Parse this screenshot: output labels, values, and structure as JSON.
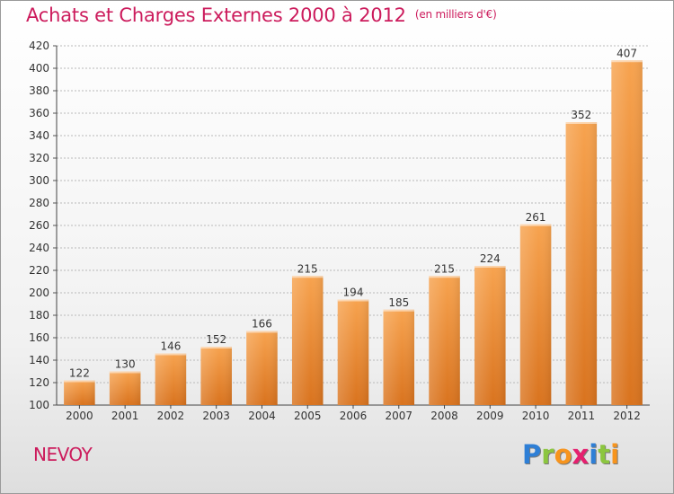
{
  "header": {
    "title": "Achats et Charges Externes 2000 à 2012",
    "subtitle": "(en milliers d'€)"
  },
  "footer": {
    "commune": "NEVOY",
    "brand": "Proxiti",
    "brand_letters": [
      {
        "ch": "P",
        "color": "#2e7fd6"
      },
      {
        "ch": "r",
        "color": "#8cc63f"
      },
      {
        "ch": "o",
        "color": "#f7941d"
      },
      {
        "ch": "x",
        "color": "#e5206f"
      },
      {
        "ch": "i",
        "color": "#2e7fd6"
      },
      {
        "ch": "t",
        "color": "#8cc63f"
      },
      {
        "ch": "i",
        "color": "#f7941d"
      }
    ]
  },
  "colors": {
    "title": "#cc1b5c",
    "bar_top": "#f7a34f",
    "bar_bottom": "#d9731e",
    "grid": "#b9b9b9",
    "text": "#333333"
  },
  "chart_data": {
    "type": "bar",
    "categories": [
      "2000",
      "2001",
      "2002",
      "2003",
      "2004",
      "2005",
      "2006",
      "2007",
      "2008",
      "2009",
      "2010",
      "2011",
      "2012"
    ],
    "values": [
      122,
      130,
      146,
      152,
      166,
      215,
      194,
      185,
      215,
      224,
      261,
      352,
      407
    ],
    "ylim": [
      100,
      420
    ],
    "yticks": [
      100,
      120,
      140,
      160,
      180,
      200,
      220,
      240,
      260,
      280,
      300,
      320,
      340,
      360,
      380,
      400,
      420
    ],
    "grid": true,
    "data_labels": true
  }
}
